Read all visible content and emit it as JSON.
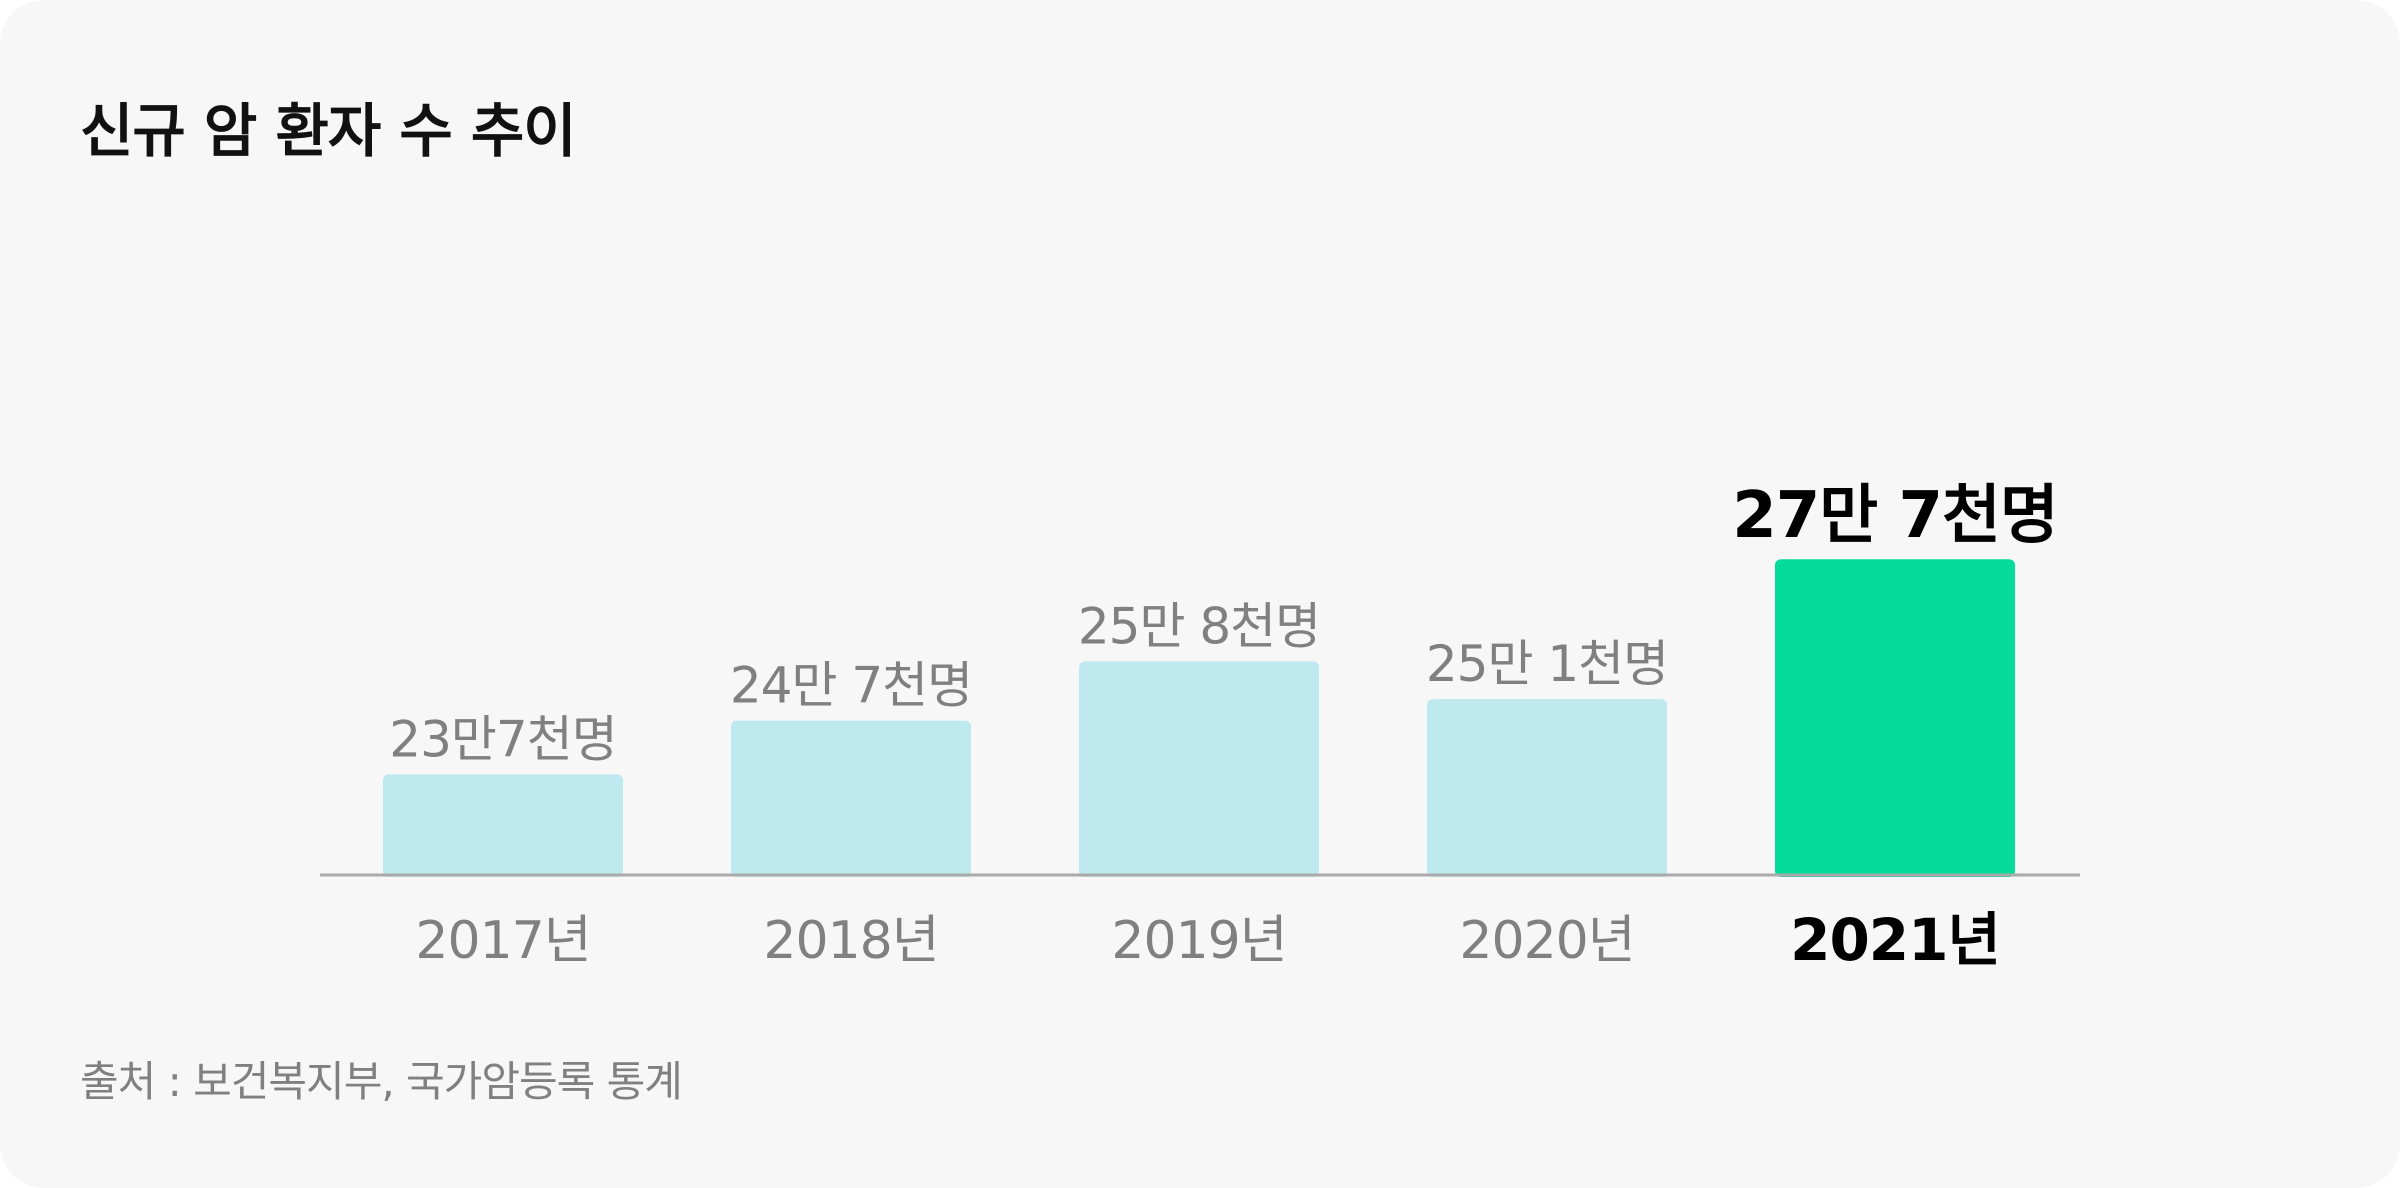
{
  "title": "신규 암 환자 수 추이",
  "source": "출처 : 보건복지부, 국가암등록 통계",
  "colors": {
    "bar": "#bee9ee",
    "highlight_bar": "#05db9a",
    "label": "#808080",
    "highlight_label": "#000000",
    "axis": "#aaaaaa"
  },
  "chart_data": {
    "type": "bar",
    "categories": [
      "2017년",
      "2018년",
      "2019년",
      "2020년",
      "2021년"
    ],
    "values": [
      237000,
      247000,
      258000,
      251000,
      277000
    ],
    "data_labels": [
      "23만7천명",
      "24만 7천명",
      "25만 8천명",
      "25만 1천명",
      "27만 7천명"
    ],
    "highlight_index": 4,
    "grid": false,
    "legend": "none"
  }
}
